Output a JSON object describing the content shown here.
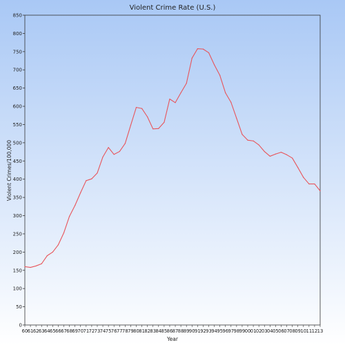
{
  "chart_data": {
    "type": "line",
    "title": "Violent Crime Rate (U.S.)",
    "xlabel": "Year",
    "ylabel": "Violent Crimes/100,000",
    "ylim": [
      0,
      850
    ],
    "yticks": [
      0,
      50,
      100,
      150,
      200,
      250,
      300,
      350,
      400,
      450,
      500,
      550,
      600,
      650,
      700,
      750,
      800,
      850
    ],
    "grid": false,
    "categories": [
      "60",
      "61",
      "62",
      "63",
      "64",
      "65",
      "66",
      "67",
      "68",
      "69",
      "70",
      "71",
      "72",
      "73",
      "74",
      "75",
      "76",
      "77",
      "78",
      "79",
      "80",
      "81",
      "82",
      "83",
      "84",
      "85",
      "86",
      "87",
      "88",
      "89",
      "90",
      "91",
      "92",
      "93",
      "94",
      "95",
      "96",
      "97",
      "98",
      "99",
      "00",
      "01",
      "02",
      "03",
      "04",
      "05",
      "06",
      "07",
      "08",
      "09",
      "10",
      "11",
      "12",
      "13"
    ],
    "series": [
      {
        "color": "#e8545a",
        "values": [
          160,
          158,
          162,
          168,
          190,
          200,
          220,
          253,
          298,
          328,
          363,
          396,
          401,
          417,
          461,
          487,
          468,
          476,
          498,
          548,
          597,
          594,
          571,
          538,
          539,
          556,
          620,
          610,
          637,
          663,
          732,
          758,
          757,
          747,
          714,
          685,
          637,
          611,
          567,
          523,
          507,
          505,
          494,
          476,
          463,
          469,
          474,
          467,
          458,
          432,
          405,
          387,
          387,
          368
        ]
      }
    ],
    "colors": {
      "background_top": "#a9c8f5",
      "background_bottom": "#ffffff",
      "line": "#e8545a"
    }
  }
}
